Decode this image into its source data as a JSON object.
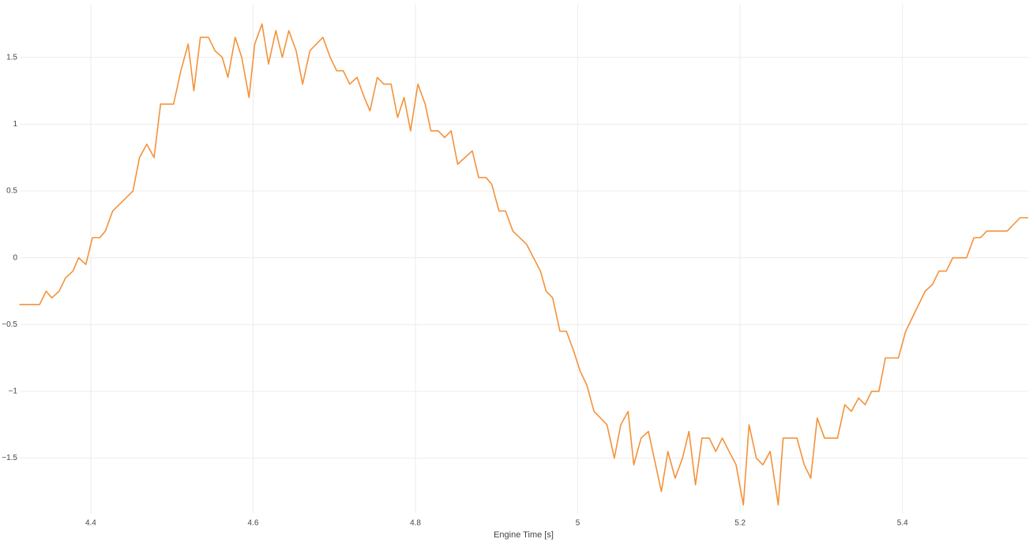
{
  "chart_data": {
    "type": "line",
    "xlabel": "Engine Time [s]",
    "xlim": [
      4.3125,
      5.555
    ],
    "ylim": [
      -1.91,
      1.9
    ],
    "xticks": [
      4.4,
      4.6,
      4.8,
      5,
      5.2,
      5.4
    ],
    "yticks": [
      {
        "value": -1.5,
        "label": "−1.5"
      },
      {
        "value": -1,
        "label": "−1"
      },
      {
        "value": -0.5,
        "label": "−0.5"
      },
      0,
      0.5,
      1,
      1.5
    ],
    "grid": true,
    "x": [
      4.312,
      4.337,
      4.345,
      4.352,
      4.361,
      4.369,
      4.378,
      4.385,
      4.394,
      4.402,
      4.411,
      4.418,
      4.427,
      4.452,
      4.46,
      4.469,
      4.478,
      4.486,
      4.502,
      4.511,
      4.52,
      4.527,
      4.535,
      4.545,
      4.553,
      4.562,
      4.569,
      4.578,
      4.586,
      4.595,
      4.602,
      4.611,
      4.619,
      4.628,
      4.636,
      4.644,
      4.653,
      4.661,
      4.67,
      4.686,
      4.695,
      4.703,
      4.711,
      4.719,
      4.728,
      4.737,
      4.744,
      4.753,
      4.761,
      4.77,
      4.778,
      4.786,
      4.794,
      4.803,
      4.812,
      4.819,
      4.828,
      4.836,
      4.844,
      4.852,
      4.87,
      4.878,
      4.887,
      4.894,
      4.903,
      4.911,
      4.92,
      4.937,
      4.954,
      4.961,
      4.969,
      4.978,
      4.986,
      4.995,
      5.003,
      5.011,
      5.02,
      5.036,
      5.045,
      5.053,
      5.062,
      5.069,
      5.078,
      5.087,
      5.103,
      5.111,
      5.12,
      5.129,
      5.137,
      5.145,
      5.153,
      5.162,
      5.17,
      5.178,
      5.195,
      5.204,
      5.211,
      5.22,
      5.228,
      5.237,
      5.247,
      5.253,
      5.27,
      5.279,
      5.287,
      5.295,
      5.304,
      5.32,
      5.329,
      5.337,
      5.346,
      5.354,
      5.362,
      5.371,
      5.379,
      5.395,
      5.404,
      5.428,
      5.437,
      5.445,
      5.454,
      5.462,
      5.479,
      5.488,
      5.496,
      5.504,
      5.529,
      5.545,
      5.555
    ],
    "series": [
      {
        "color": "#f4923a",
        "values": [
          -0.35,
          -0.35,
          -0.25,
          -0.3,
          -0.25,
          -0.15,
          -0.1,
          0,
          -0.05,
          0.15,
          0.15,
          0.2,
          0.35,
          0.5,
          0.75,
          0.85,
          0.75,
          1.15,
          1.15,
          1.4,
          1.6,
          1.25,
          1.65,
          1.65,
          1.55,
          1.5,
          1.35,
          1.65,
          1.5,
          1.2,
          1.6,
          1.75,
          1.45,
          1.7,
          1.5,
          1.7,
          1.55,
          1.3,
          1.55,
          1.65,
          1.5,
          1.4,
          1.4,
          1.3,
          1.35,
          1.2,
          1.1,
          1.35,
          1.3,
          1.3,
          1.05,
          1.2,
          0.95,
          1.3,
          1.15,
          0.95,
          0.95,
          0.9,
          0.95,
          0.7,
          0.8,
          0.6,
          0.6,
          0.55,
          0.35,
          0.35,
          0.2,
          0.1,
          -0.1,
          -0.25,
          -0.3,
          -0.55,
          -0.55,
          -0.7,
          -0.85,
          -0.95,
          -1.15,
          -1.25,
          -1.5,
          -1.25,
          -1.15,
          -1.55,
          -1.35,
          -1.3,
          -1.75,
          -1.45,
          -1.65,
          -1.5,
          -1.3,
          -1.7,
          -1.35,
          -1.35,
          -1.45,
          -1.35,
          -1.55,
          -1.85,
          -1.25,
          -1.5,
          -1.55,
          -1.45,
          -1.85,
          -1.35,
          -1.35,
          -1.55,
          -1.65,
          -1.2,
          -1.35,
          -1.35,
          -1.1,
          -1.15,
          -1.05,
          -1.1,
          -1,
          -1,
          -0.75,
          -0.75,
          -0.55,
          -0.25,
          -0.2,
          -0.1,
          -0.1,
          0,
          0,
          0.15,
          0.15,
          0.2,
          0.2,
          0.3,
          0.3
        ]
      }
    ]
  }
}
